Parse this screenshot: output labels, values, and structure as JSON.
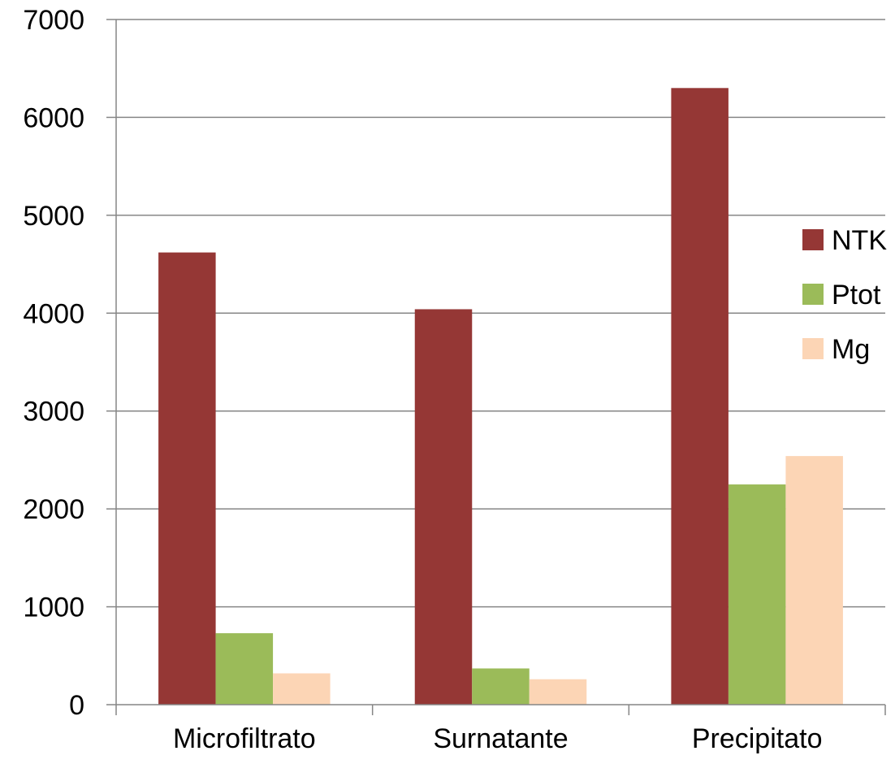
{
  "chart_data": {
    "type": "bar",
    "title": "",
    "xlabel": "",
    "ylabel": "",
    "categories": [
      "Microfiltrato",
      "Surnatante",
      "Precipitato"
    ],
    "series": [
      {
        "name": "NTK",
        "color": "#953735",
        "values": [
          4620,
          4040,
          6300
        ]
      },
      {
        "name": "Ptot",
        "color": "#9BBB59",
        "values": [
          730,
          370,
          2250
        ]
      },
      {
        "name": "Mg",
        "color": "#FCD5B5",
        "values": [
          320,
          260,
          2540
        ]
      }
    ],
    "ylim": [
      0,
      7000
    ],
    "yticks": [
      "0",
      "1000",
      "2000",
      "3000",
      "4000",
      "5000",
      "6000",
      "7000"
    ],
    "grid": true,
    "legend_position": "right"
  }
}
